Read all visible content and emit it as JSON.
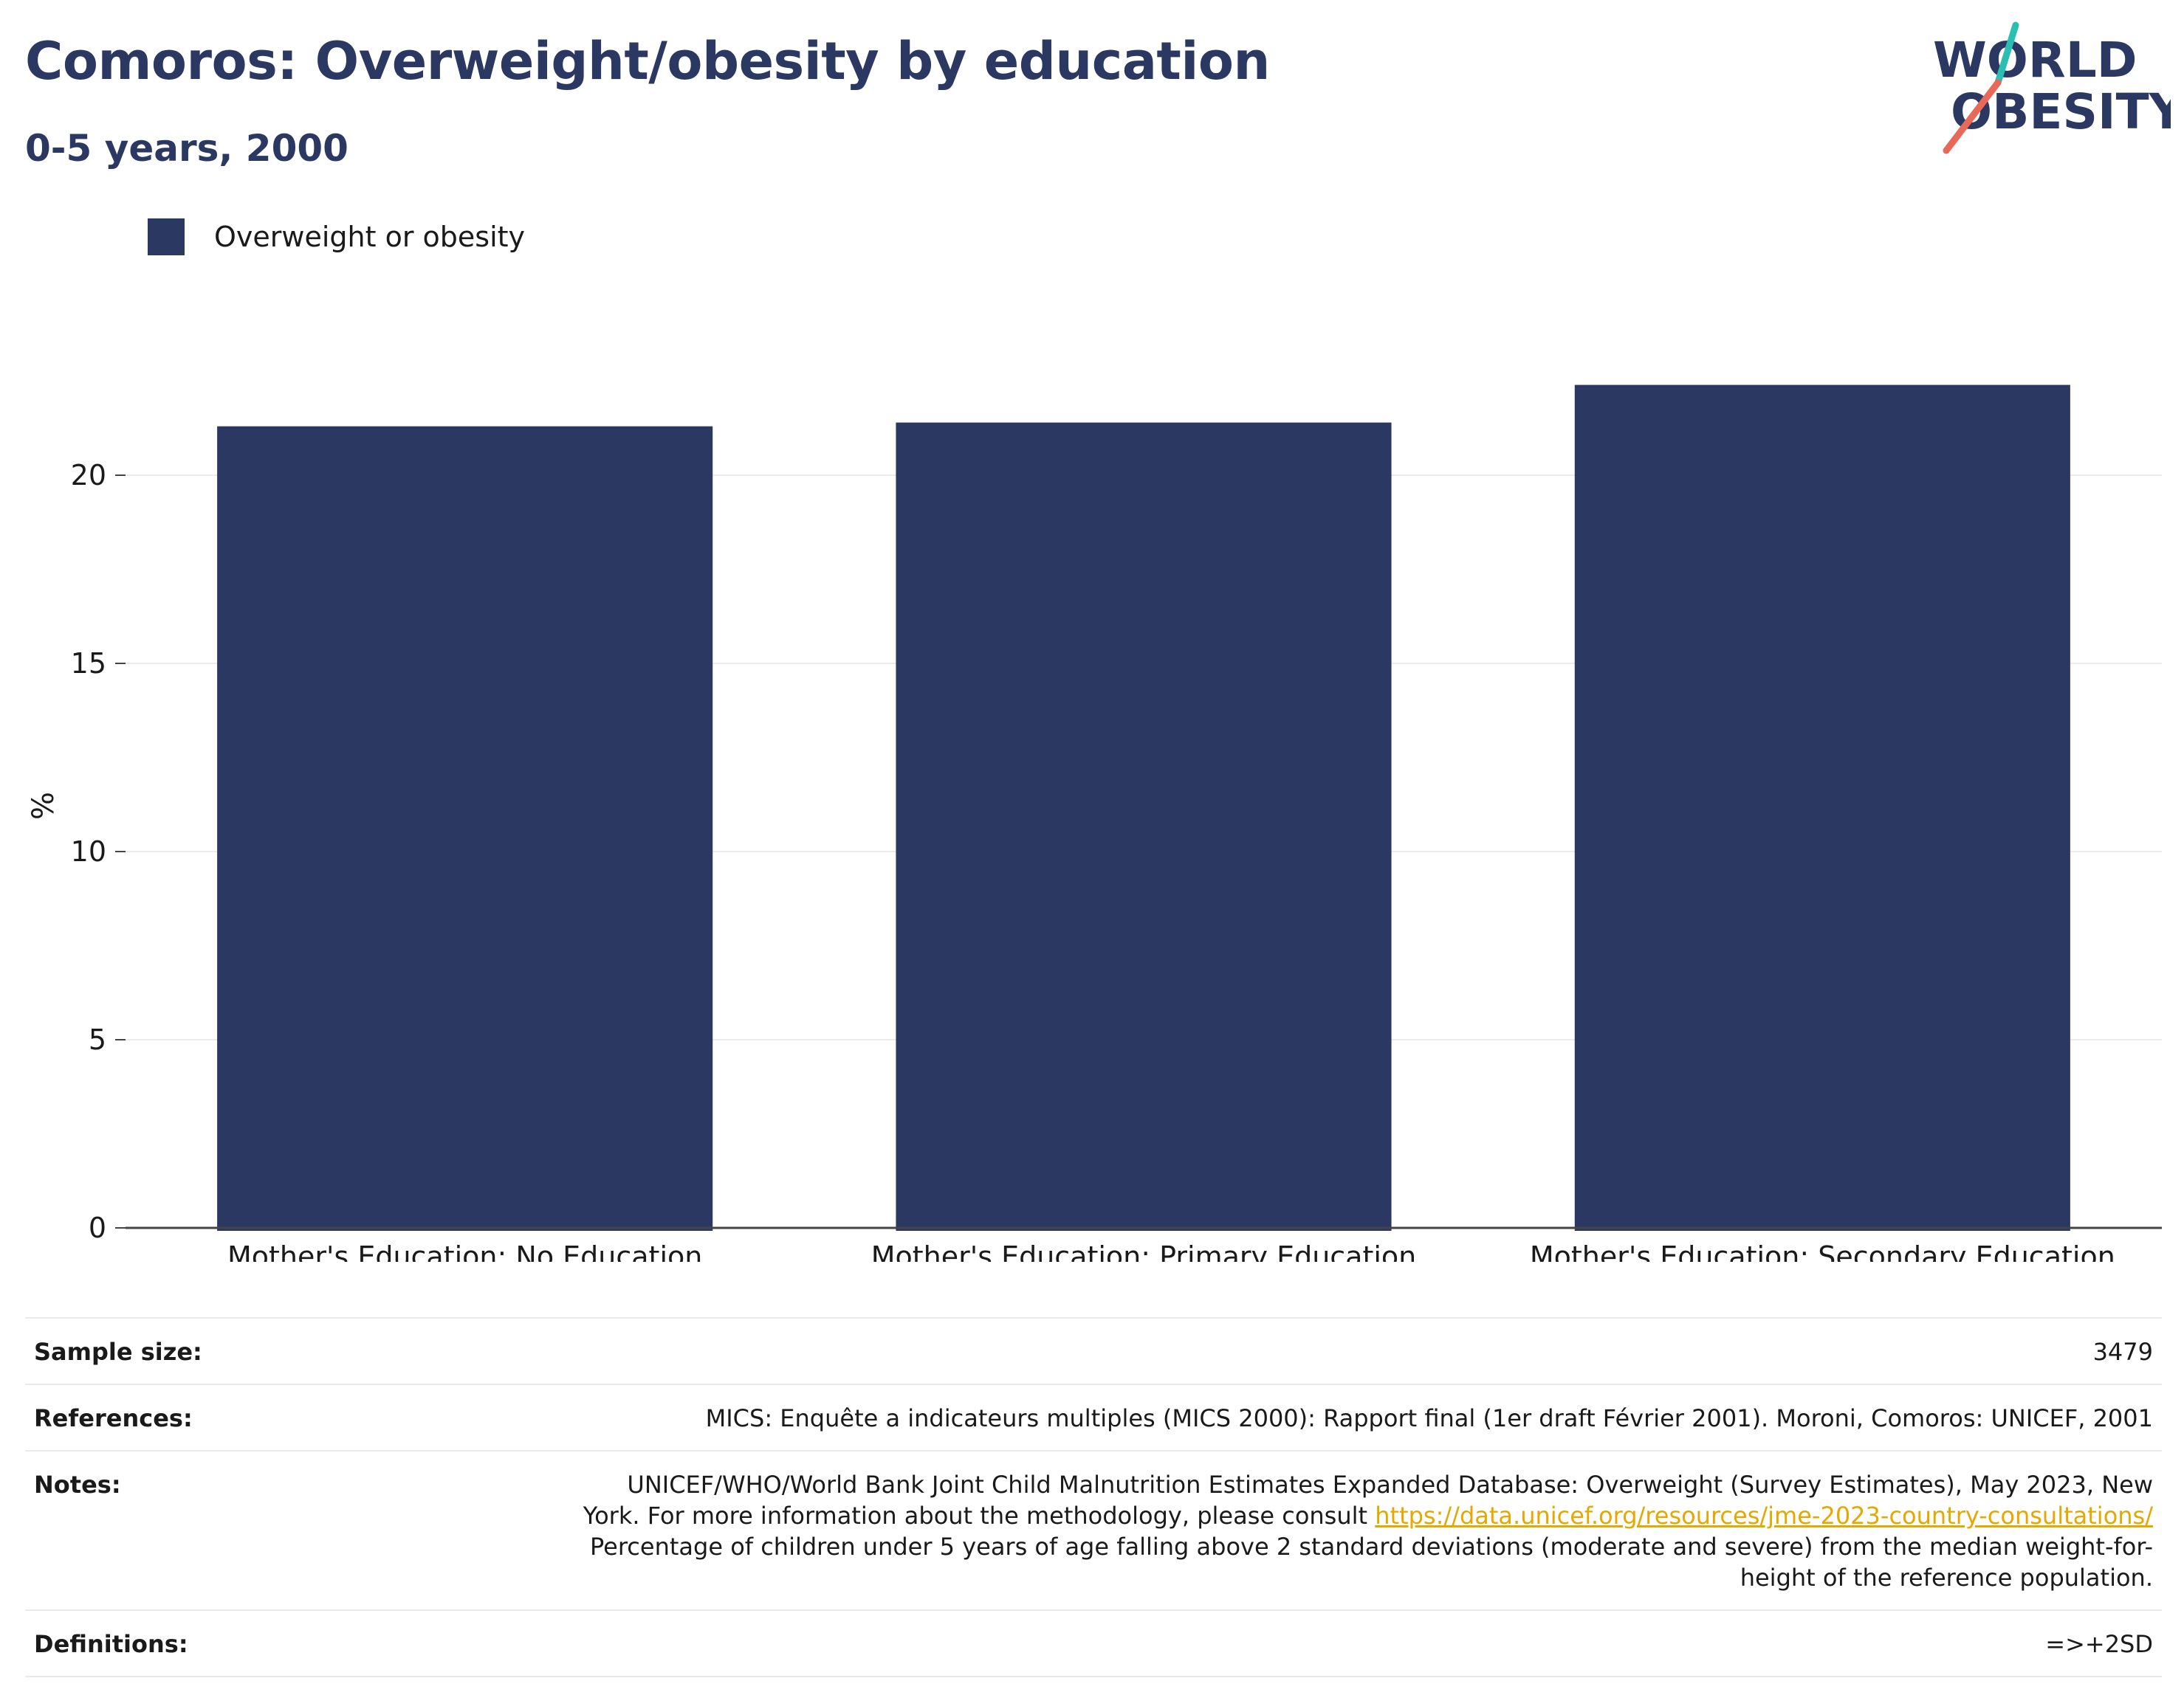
{
  "header": {
    "title": "Comoros: Overweight/obesity by education",
    "subtitle": "0-5 years, 2000"
  },
  "logo": {
    "line1": "WORLD",
    "line2": "OBESITY"
  },
  "colors": {
    "bar": "#2b3862",
    "title": "#2b3862",
    "link": "#e6a800",
    "logo_teal": "#2bbfb3",
    "logo_red": "#e8685a"
  },
  "chart_data": {
    "type": "bar",
    "categories": [
      "Mother's Education: No Education",
      "Mother's Education: Primary Education",
      "Mother's Education: Secondary Education"
    ],
    "series": [
      {
        "name": "Overweight or obesity",
        "values": [
          21.3,
          21.4,
          22.4
        ]
      }
    ],
    "ylabel": "%",
    "xlabel": "",
    "ylim": [
      0,
      24
    ],
    "yticks": [
      0,
      5,
      10,
      15,
      20
    ],
    "grid": true,
    "legend": "top-left"
  },
  "footer": {
    "sample_size": {
      "label": "Sample size:",
      "value": "3479"
    },
    "references": {
      "label": "References:",
      "value": "MICS: Enquête a indicateurs multiples (MICS 2000): Rapport final (1er draft Février 2001). Moroni, Comoros: UNICEF, 2001"
    },
    "notes": {
      "label": "Notes:",
      "line1": "UNICEF/WHO/World Bank Joint Child Malnutrition Estimates Expanded Database: Overweight (Survey Estimates), May 2023, New",
      "line2": "York. For more information about the methodology, please consult",
      "link": "https://data.unicef.org/resources/jme-2023-country-consultations/",
      "line3": "Percentage of children under 5 years of age falling above 2 standard deviations (moderate and severe) from the median weight-for-",
      "line4": "height of the reference population."
    },
    "definitions": {
      "label": "Definitions:",
      "value": "=>+2SD"
    }
  }
}
